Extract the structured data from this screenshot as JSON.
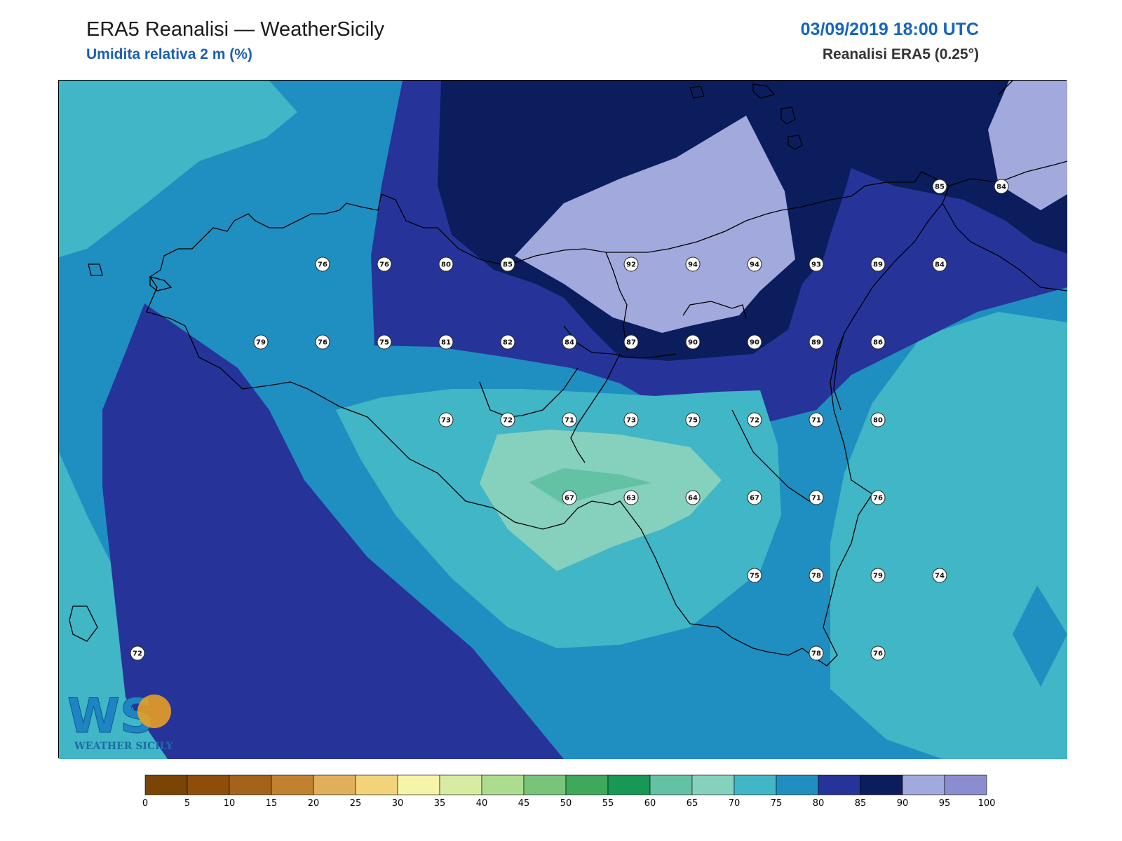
{
  "header": {
    "title": "ERA5 Reanalisi — WeatherSicily",
    "subtitle": "Umidita relativa 2 m (%)",
    "datetime": "03/09/2019 18:00 UTC",
    "source": "Reanalisi ERA5 (0.25°)"
  },
  "logo": {
    "text": "WS",
    "caption": "WEATHER SICILY"
  },
  "colorbar": {
    "levels": [
      0,
      5,
      10,
      15,
      20,
      25,
      30,
      35,
      40,
      45,
      50,
      55,
      60,
      65,
      70,
      75,
      80,
      85,
      90,
      95,
      100
    ],
    "colors": [
      "#7a4405",
      "#8e4e0a",
      "#a5621a",
      "#c1812e",
      "#e0af5c",
      "#f2d37c",
      "#f6f4a6",
      "#d8eba3",
      "#acdd8f",
      "#78c579",
      "#3fa85a",
      "#179955",
      "#62c2a3",
      "#86d0be",
      "#40b6c6",
      "#1f8fc1",
      "#26349a",
      "#0b1d5c",
      "#a2a9dc",
      "#8c8dcf"
    ]
  },
  "stations": [
    {
      "value": "76",
      "lon": 12.5,
      "lat": 38.5
    },
    {
      "value": "76",
      "lon": 12.75,
      "lat": 38.5
    },
    {
      "value": "80",
      "lon": 13.0,
      "lat": 38.5
    },
    {
      "value": "85",
      "lon": 13.25,
      "lat": 38.5
    },
    {
      "value": "92",
      "lon": 13.75,
      "lat": 38.5
    },
    {
      "value": "94",
      "lon": 14.0,
      "lat": 38.5
    },
    {
      "value": "94",
      "lon": 14.25,
      "lat": 38.5
    },
    {
      "value": "93",
      "lon": 14.5,
      "lat": 38.5
    },
    {
      "value": "89",
      "lon": 14.75,
      "lat": 38.5
    },
    {
      "value": "84",
      "lon": 15.0,
      "lat": 38.5
    },
    {
      "value": "85",
      "lon": 15.0,
      "lat": 38.75
    },
    {
      "value": "84",
      "lon": 15.25,
      "lat": 38.75
    },
    {
      "value": "79",
      "lon": 12.25,
      "lat": 38.25
    },
    {
      "value": "76",
      "lon": 12.5,
      "lat": 38.25
    },
    {
      "value": "75",
      "lon": 12.75,
      "lat": 38.25
    },
    {
      "value": "81",
      "lon": 13.0,
      "lat": 38.25
    },
    {
      "value": "82",
      "lon": 13.25,
      "lat": 38.25
    },
    {
      "value": "84",
      "lon": 13.5,
      "lat": 38.25
    },
    {
      "value": "87",
      "lon": 13.75,
      "lat": 38.25
    },
    {
      "value": "90",
      "lon": 14.0,
      "lat": 38.25
    },
    {
      "value": "90",
      "lon": 14.25,
      "lat": 38.25
    },
    {
      "value": "89",
      "lon": 14.5,
      "lat": 38.25
    },
    {
      "value": "86",
      "lon": 14.75,
      "lat": 38.25
    },
    {
      "value": "73",
      "lon": 13.0,
      "lat": 38.0
    },
    {
      "value": "72",
      "lon": 13.25,
      "lat": 38.0
    },
    {
      "value": "71",
      "lon": 13.5,
      "lat": 38.0
    },
    {
      "value": "73",
      "lon": 13.75,
      "lat": 38.0
    },
    {
      "value": "75",
      "lon": 14.0,
      "lat": 38.0
    },
    {
      "value": "72",
      "lon": 14.25,
      "lat": 38.0
    },
    {
      "value": "71",
      "lon": 14.5,
      "lat": 38.0
    },
    {
      "value": "80",
      "lon": 14.75,
      "lat": 38.0
    },
    {
      "value": "67",
      "lon": 13.5,
      "lat": 37.75
    },
    {
      "value": "63",
      "lon": 13.75,
      "lat": 37.75
    },
    {
      "value": "64",
      "lon": 14.0,
      "lat": 37.75
    },
    {
      "value": "67",
      "lon": 14.25,
      "lat": 37.75
    },
    {
      "value": "71",
      "lon": 14.5,
      "lat": 37.75
    },
    {
      "value": "76",
      "lon": 14.75,
      "lat": 37.75
    },
    {
      "value": "75",
      "lon": 14.25,
      "lat": 37.5
    },
    {
      "value": "78",
      "lon": 14.5,
      "lat": 37.5
    },
    {
      "value": "79",
      "lon": 14.75,
      "lat": 37.5
    },
    {
      "value": "74",
      "lon": 15.0,
      "lat": 37.5
    },
    {
      "value": "78",
      "lon": 14.5,
      "lat": 37.25
    },
    {
      "value": "76",
      "lon": 14.75,
      "lat": 37.25
    },
    {
      "value": "72",
      "lon": 11.75,
      "lat": 37.25
    }
  ]
}
